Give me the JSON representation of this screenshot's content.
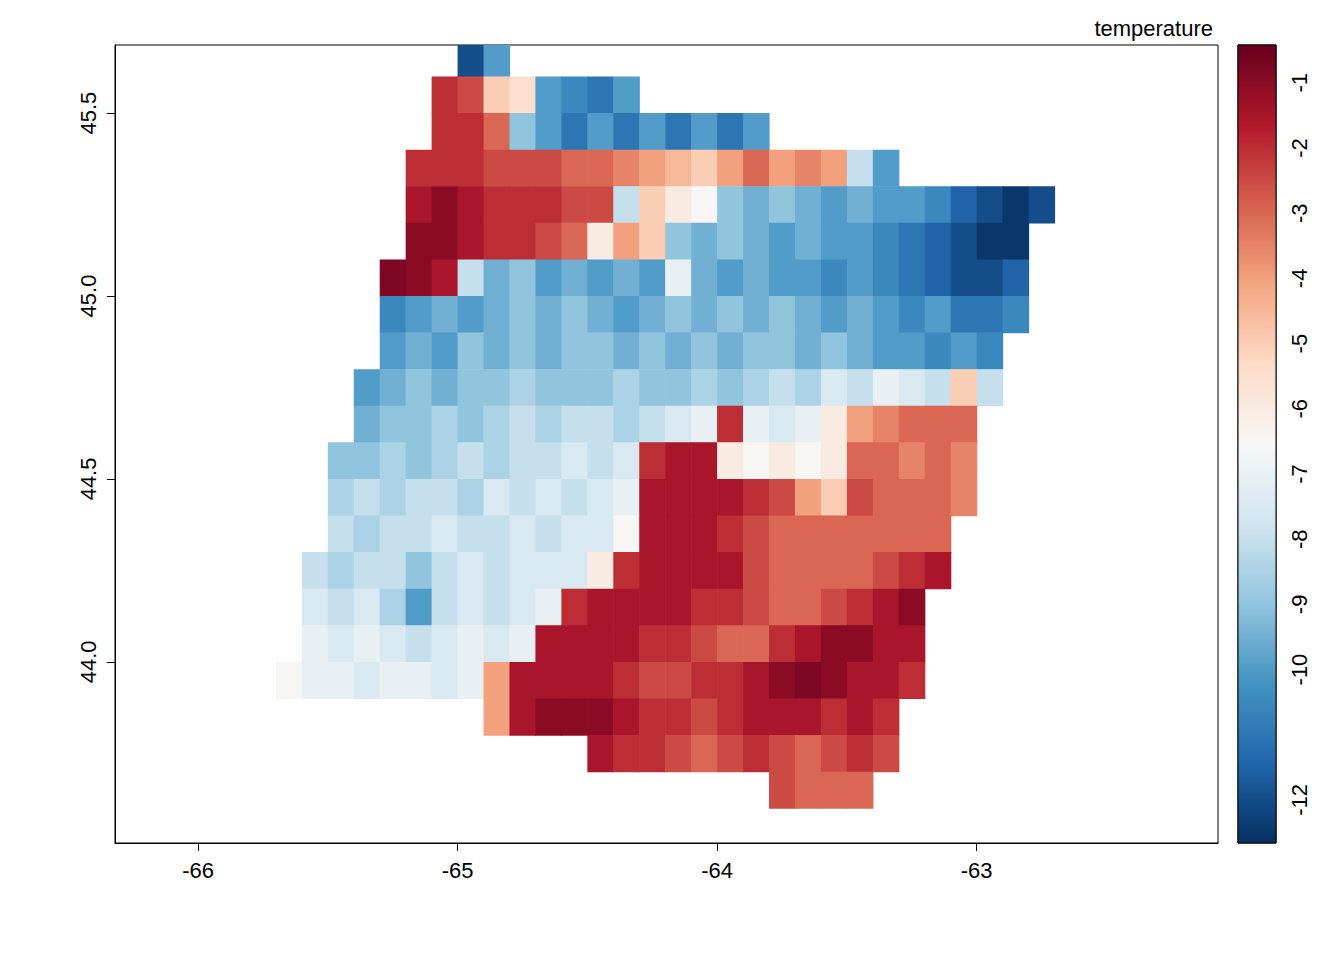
{
  "chart_data": {
    "type": "raster",
    "title": "temperature",
    "x": [
      -65.65,
      -65.55,
      -65.45,
      -65.35,
      -65.25,
      -65.15,
      -65.05,
      -64.95,
      -64.85,
      -64.75,
      -64.65,
      -64.55,
      -64.45,
      -64.35,
      -64.25,
      -64.15,
      -64.05,
      -63.95,
      -63.85,
      -63.75,
      -63.65,
      -63.55,
      -63.45,
      -63.35,
      -63.25,
      -63.15,
      -63.05,
      -62.95,
      -62.85,
      -62.75
    ],
    "y": [
      45.65,
      45.55,
      45.45,
      45.35,
      45.25,
      45.15,
      45.05,
      44.95,
      44.85,
      44.75,
      44.65,
      44.55,
      44.45,
      44.35,
      44.25,
      44.15,
      44.05,
      43.95,
      43.85,
      43.75,
      43.65
    ],
    "z": [
      [
        null,
        null,
        null,
        null,
        null,
        null,
        null,
        -12,
        -10,
        null,
        null,
        null,
        null,
        null,
        null,
        null,
        null,
        null,
        null,
        null,
        null,
        null,
        null,
        null,
        null,
        null,
        null,
        null,
        null,
        null
      ],
      [
        null,
        null,
        null,
        null,
        null,
        null,
        -2,
        -2.5,
        -5,
        -5.5,
        -10,
        -10.5,
        -11,
        -10,
        null,
        null,
        null,
        null,
        null,
        null,
        null,
        null,
        null,
        null,
        null,
        null,
        null,
        null,
        null,
        null
      ],
      [
        null,
        null,
        null,
        null,
        null,
        null,
        -2,
        -2,
        -3,
        -9,
        -10,
        -11,
        -10,
        -11,
        -10,
        -11,
        -10,
        -11,
        -10,
        null,
        null,
        null,
        null,
        null,
        null,
        null,
        null,
        null,
        null,
        null
      ],
      [
        null,
        null,
        null,
        null,
        null,
        -2,
        -2,
        -2,
        -2.5,
        -2.5,
        -2.5,
        -3,
        -3,
        -3.5,
        -4,
        -4.5,
        -5,
        -4,
        -3,
        -4,
        -3.5,
        -4,
        -8,
        -10,
        null,
        null,
        null,
        null,
        null,
        null
      ],
      [
        null,
        null,
        null,
        null,
        null,
        -1.5,
        -1,
        -1.5,
        -2,
        -2,
        -2,
        -2.5,
        -2.5,
        -8,
        -5,
        -6,
        -6.5,
        -9,
        -9.5,
        -9,
        -9.5,
        -10,
        -9.5,
        -10,
        -10,
        -10.5,
        -11.5,
        -12,
        -12.5,
        -12
      ],
      [
        null,
        null,
        null,
        null,
        null,
        -1,
        -1,
        -1.5,
        -2,
        -2,
        -2.5,
        -3,
        -6,
        -4,
        -5,
        -9,
        -9.5,
        -9,
        -9.5,
        -10,
        -9.5,
        -10,
        -10,
        -10.5,
        -11,
        -11.5,
        -12,
        -12.5,
        -12.5,
        null
      ],
      [
        null,
        null,
        null,
        null,
        -0.8,
        -1,
        -1.5,
        -8,
        -9.5,
        -9,
        -10,
        -9.5,
        -10,
        -9.5,
        -10,
        -7,
        -9.5,
        -10,
        -9.5,
        -10,
        -10,
        -10.5,
        -10,
        -10.5,
        -11,
        -11.5,
        -12,
        -12,
        -11.5,
        null
      ],
      [
        null,
        null,
        null,
        null,
        -10.5,
        -10,
        -9.5,
        -10,
        -9.5,
        -9,
        -9.5,
        -9,
        -9.5,
        -10,
        -9.5,
        -9,
        -9.5,
        -9,
        -9.5,
        -9,
        -9.5,
        -10,
        -9.5,
        -10,
        -10.5,
        -10,
        -11,
        -11,
        -10.5,
        null
      ],
      [
        null,
        null,
        null,
        null,
        -10,
        -9.5,
        -10,
        -9,
        -9.5,
        -9,
        -9.5,
        -9,
        -9,
        -9.5,
        -9,
        -9.5,
        -9,
        -9.5,
        -9,
        -9,
        -9.5,
        -9,
        -9.5,
        -10,
        -10,
        -10.5,
        -10,
        -10.5,
        null,
        null
      ],
      [
        null,
        null,
        null,
        -10,
        -9.5,
        -9,
        -9.5,
        -9,
        -9,
        -8.5,
        -9,
        -9,
        -9,
        -8.5,
        -9,
        -9,
        -8.5,
        -9,
        -8.5,
        -8,
        -8.5,
        -7.5,
        -8,
        -7,
        -7.5,
        -8,
        -5,
        -8,
        null,
        null
      ],
      [
        null,
        null,
        null,
        -9.5,
        -9,
        -9,
        -8.5,
        -9,
        -8.5,
        -8,
        -8.5,
        -8,
        -8,
        -8.5,
        -8,
        -7.5,
        -7,
        -2,
        -7,
        -7.5,
        -7,
        -6,
        -4,
        -3.5,
        -3,
        -3,
        -3,
        null,
        null,
        null
      ],
      [
        null,
        null,
        -9,
        -9,
        -8.5,
        -9,
        -8.5,
        -8,
        -8.5,
        -8,
        -8,
        -7.5,
        -8,
        -7.5,
        -2,
        -1.5,
        -1.5,
        -6,
        -6.5,
        -6,
        -6.5,
        -6,
        -3,
        -3,
        -3.5,
        -3,
        -3.5,
        null,
        null,
        null
      ],
      [
        null,
        null,
        -8.5,
        -8,
        -8.5,
        -8,
        -8,
        -8.5,
        -7.5,
        -8,
        -7.5,
        -8,
        -7.5,
        -7,
        -1.5,
        -1.5,
        -1.5,
        -1.5,
        -2,
        -2.5,
        -4,
        -5,
        -2.5,
        -3,
        -3,
        -3,
        -3.5,
        null,
        null,
        null
      ],
      [
        null,
        null,
        -8,
        -8.5,
        -8,
        -8,
        -7.5,
        -8,
        -8,
        -7.5,
        -8,
        -7.5,
        -7.5,
        -6.5,
        -1.5,
        -1.5,
        -1.5,
        -2,
        -2.5,
        -3,
        -3,
        -3,
        -3,
        -3,
        -3,
        -3,
        null,
        null,
        null,
        null
      ],
      [
        null,
        -8,
        -8.5,
        -8,
        -8,
        -9,
        -8,
        -7.5,
        -8,
        -7.5,
        -7.5,
        -7.5,
        -6,
        -2,
        -1.5,
        -1.5,
        -1.5,
        -1.5,
        -2.5,
        -3,
        -3,
        -3,
        -3,
        -2.5,
        -2,
        -1.5,
        null,
        null,
        null,
        null
      ],
      [
        null,
        -7.5,
        -8,
        -7.5,
        -8.5,
        -10,
        -8,
        -7.5,
        -8,
        -7.5,
        -7,
        -2,
        -1.5,
        -1.5,
        -1.5,
        -1.5,
        -2,
        -2,
        -2.5,
        -3,
        -3,
        -2.5,
        -2,
        -1.5,
        -1,
        null,
        null,
        null,
        null,
        null
      ],
      [
        null,
        -7,
        -7.5,
        -7,
        -7.5,
        -8,
        -7.5,
        -7,
        -7.5,
        -7,
        -1.5,
        -1.5,
        -1.5,
        -1.5,
        -2,
        -2,
        -2.5,
        -3,
        -3,
        -2,
        -1.5,
        -1,
        -1,
        -1.5,
        -1.5,
        null,
        null,
        null,
        null,
        null
      ],
      [
        -6.5,
        -7,
        -7,
        -7.5,
        -7,
        -7,
        -7.5,
        -7,
        -4,
        -1.5,
        -1.5,
        -1.5,
        -1.5,
        -2,
        -2.5,
        -2.5,
        -2,
        -2,
        -1.5,
        -1,
        -0.8,
        -1,
        -1.5,
        -1.5,
        -2,
        null,
        null,
        null,
        null,
        null
      ],
      [
        null,
        null,
        null,
        null,
        null,
        null,
        null,
        null,
        -4,
        -1.5,
        -1,
        -1,
        -1,
        -1.5,
        -2,
        -2,
        -2.5,
        -2,
        -1.5,
        -1.5,
        -1.5,
        -2,
        -1.5,
        -2,
        null,
        null,
        null,
        null,
        null,
        null
      ],
      [
        null,
        null,
        null,
        null,
        null,
        null,
        null,
        null,
        null,
        null,
        null,
        null,
        -1.5,
        -2,
        -2,
        -2.5,
        -3,
        -2.5,
        -2,
        -2.5,
        -3,
        -2.5,
        -2,
        -2.5,
        null,
        null,
        null,
        null,
        null,
        null
      ],
      [
        null,
        null,
        null,
        null,
        null,
        null,
        null,
        null,
        null,
        null,
        null,
        null,
        null,
        null,
        null,
        null,
        null,
        null,
        null,
        -2.5,
        -3,
        -3,
        -3,
        null,
        null,
        null,
        null,
        null,
        null,
        null
      ]
    ],
    "xlim": [
      -66.32,
      -62.07
    ],
    "ylim": [
      43.505,
      45.686
    ],
    "xticks": [
      -66,
      -65,
      -64,
      -63
    ],
    "yticks": [
      {
        "value": 44,
        "label": "44.0"
      },
      44.5,
      {
        "value": 45,
        "label": "45.0"
      },
      45.5
    ],
    "colorbar": {
      "range": [
        -12.66,
        -0.42
      ],
      "ticks": [
        -12,
        -10,
        -9,
        -8,
        -7,
        -6,
        -5,
        -4,
        -3,
        -2,
        -1
      ]
    },
    "grid": false
  }
}
